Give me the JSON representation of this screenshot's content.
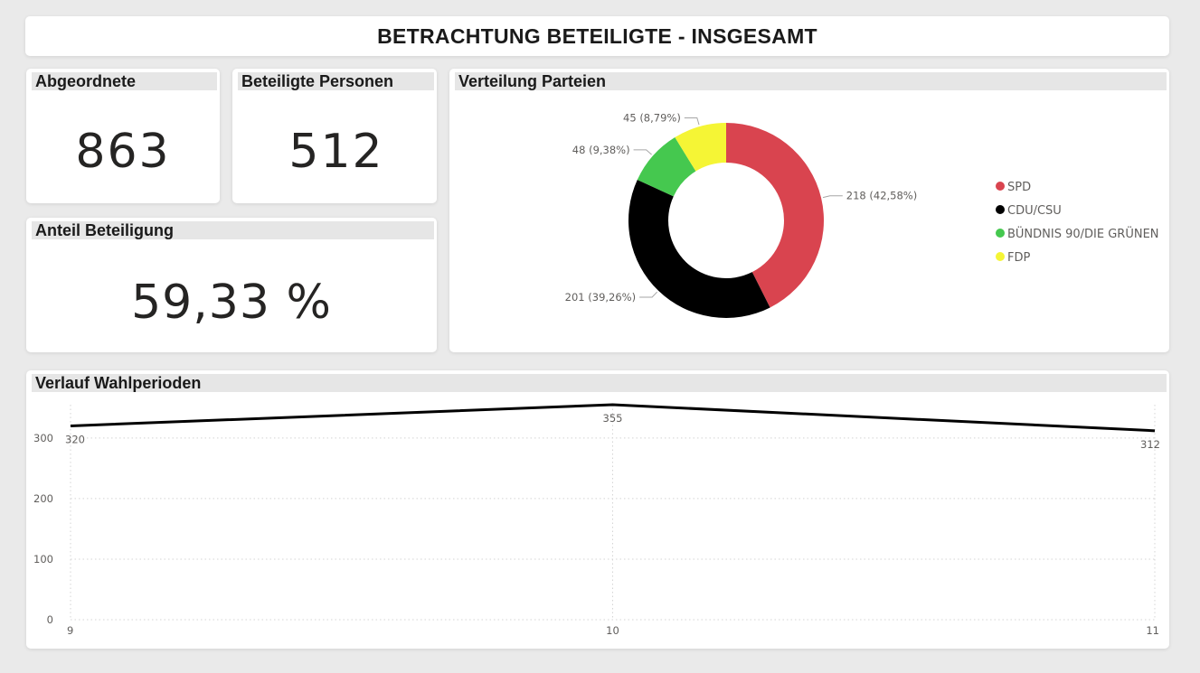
{
  "page_title": "BETRACHTUNG BETEILIGTE - INSGESAMT",
  "kpis": {
    "abgeordnete": {
      "title": "Abgeordnete",
      "value": "863"
    },
    "beteiligte_personen": {
      "title": "Beteiligte Personen",
      "value": "512"
    },
    "anteil_beteiligung": {
      "title": "Anteil Beteiligung",
      "value": "59,33 %"
    }
  },
  "chart_data": [
    {
      "type": "pie",
      "variant": "donut",
      "title": "Verteilung Parteien",
      "categories": [
        "SPD",
        "CDU/CSU",
        "BÜNDNIS 90/DIE GRÜNEN",
        "FDP"
      ],
      "values": [
        218,
        201,
        48,
        45
      ],
      "data_labels": [
        "218 (42,58%)",
        "201 (39,26%)",
        "48 (9,38%)",
        "45 (8,79%)"
      ],
      "colors": [
        "#d9444f",
        "#000000",
        "#45c84f",
        "#f5f535"
      ],
      "legend_position": "right"
    },
    {
      "type": "line",
      "title": "Verlauf Wahlperioden",
      "x": [
        9,
        10,
        11
      ],
      "values": [
        320,
        355,
        312
      ],
      "data_labels": [
        "320",
        "355",
        "312"
      ],
      "y_ticks": [
        0,
        100,
        200,
        300
      ],
      "ylim": [
        0,
        355
      ],
      "grid": true,
      "line_color": "#000000"
    }
  ]
}
